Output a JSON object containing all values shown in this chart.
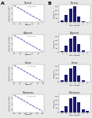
{
  "networks": [
    "Normal",
    "Adjacent",
    "Tumor",
    "Metastasis"
  ],
  "left_xlabel": "Degree",
  "left_ylabel": "Number of Nodes",
  "right_xlabel": "Path Length",
  "right_ylabel": "Frequency",
  "scatter_color": "#ccccdd",
  "line_color": "#5555aa",
  "bar_color": "#191970",
  "annotations": [
    "y=-1.57x+2.3",
    "y=-1.62x+2.4",
    "y=-1.75x+2.5",
    "y=-1.89x+2.6"
  ],
  "panel_A_label": "A",
  "panel_B_label": "B",
  "scatter_x_data": [
    [
      1,
      1,
      1,
      2,
      2,
      2,
      3,
      3,
      4,
      4,
      5,
      5,
      6,
      7,
      8,
      9,
      10,
      12,
      15,
      20,
      25,
      30,
      40,
      60,
      100,
      150,
      200
    ],
    [
      1,
      1,
      1,
      2,
      2,
      2,
      3,
      3,
      4,
      4,
      5,
      5,
      6,
      7,
      8,
      10,
      12,
      15,
      20,
      25,
      35,
      50,
      70,
      100,
      150,
      200
    ],
    [
      1,
      1,
      1,
      2,
      2,
      2,
      3,
      3,
      4,
      4,
      5,
      6,
      7,
      8,
      10,
      12,
      15,
      20,
      25,
      30,
      40,
      60,
      80,
      120,
      180,
      250
    ],
    [
      1,
      1,
      1,
      2,
      2,
      2,
      3,
      3,
      4,
      5,
      5,
      6,
      7,
      8,
      10,
      13,
      16,
      20,
      28,
      35,
      50,
      70,
      100,
      150,
      200,
      300
    ]
  ],
  "scatter_y_data": [
    [
      300,
      280,
      260,
      180,
      160,
      140,
      110,
      90,
      70,
      60,
      50,
      40,
      32,
      25,
      20,
      16,
      13,
      10,
      8,
      5,
      4,
      3,
      2,
      1,
      1,
      1,
      1
    ],
    [
      320,
      290,
      260,
      190,
      165,
      145,
      115,
      95,
      72,
      62,
      52,
      42,
      33,
      26,
      21,
      16,
      12,
      9,
      6,
      4,
      3,
      2,
      1,
      1,
      1,
      1
    ],
    [
      310,
      285,
      255,
      185,
      162,
      142,
      112,
      92,
      71,
      61,
      51,
      41,
      33,
      25,
      20,
      15,
      12,
      9,
      6,
      4,
      3,
      2,
      1,
      1,
      1,
      1
    ],
    [
      330,
      300,
      270,
      195,
      170,
      148,
      118,
      97,
      74,
      64,
      54,
      44,
      35,
      27,
      22,
      17,
      13,
      10,
      7,
      5,
      3,
      2,
      1,
      1,
      1,
      1
    ]
  ],
  "bar_x": [
    [
      1,
      2,
      3,
      4,
      5,
      6,
      7
    ],
    [
      1,
      2,
      3,
      4,
      5,
      6,
      7
    ],
    [
      1,
      2,
      3,
      4,
      5,
      6,
      7
    ],
    [
      1,
      2,
      3,
      4,
      5,
      6,
      7
    ]
  ],
  "bar_heights": [
    [
      400,
      1600,
      3000,
      3400,
      1200,
      300,
      80
    ],
    [
      300,
      1400,
      2800,
      3200,
      1600,
      400,
      100
    ],
    [
      350,
      1500,
      2900,
      3300,
      1400,
      350,
      90
    ],
    [
      250,
      1100,
      2600,
      3000,
      1900,
      550,
      160
    ]
  ],
  "fig_background": "#e8e8e8",
  "panel_bg": "#ffffff"
}
